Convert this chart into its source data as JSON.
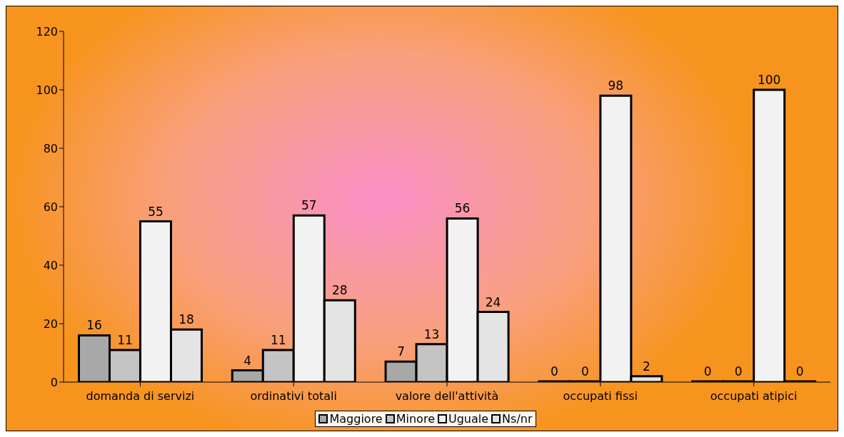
{
  "chart_data": {
    "type": "bar",
    "categories": [
      "domanda di servizi",
      "ordinativi totali",
      "valore dell'attività",
      "occupati fissi",
      "occupati atipici"
    ],
    "series": [
      {
        "name": "Maggiore",
        "color": "#a8a8a8",
        "values": [
          16,
          4,
          7,
          0,
          0
        ]
      },
      {
        "name": "Minore",
        "color": "#c4c4c4",
        "values": [
          11,
          11,
          13,
          0,
          0
        ]
      },
      {
        "name": "Uguale",
        "color": "#f2f2f2",
        "values": [
          55,
          57,
          56,
          98,
          100
        ]
      },
      {
        "name": "Ns/nr",
        "color": "#e4e4e4",
        "values": [
          18,
          28,
          24,
          2,
          0
        ]
      }
    ],
    "ylim": [
      0,
      120
    ],
    "yticks": [
      0,
      20,
      40,
      60,
      80,
      100,
      120
    ],
    "data_labels": true,
    "legend": "bottom",
    "grid": false
  }
}
